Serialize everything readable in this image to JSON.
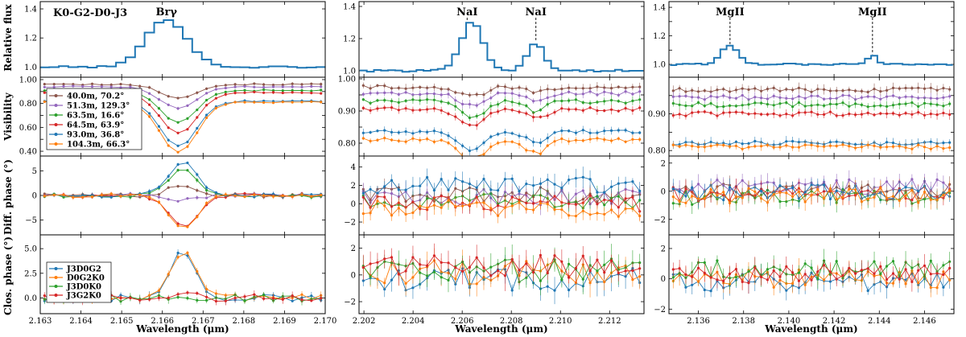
{
  "chart_data": {
    "type": "line",
    "title": "K0-G2-D0-J3",
    "xlabel": "Wavelength (μm)",
    "row_labels": [
      "Relative flux",
      "Visibility",
      "Diff. phase (°)",
      "Clos. phase (°)"
    ],
    "series_colors": {
      "baselines": [
        "#8c564b",
        "#9467bd",
        "#2ca02c",
        "#d62728",
        "#1f77b4",
        "#ff7f0e"
      ],
      "triangles": [
        "#1f77b4",
        "#ff7f0e",
        "#2ca02c",
        "#d62728"
      ],
      "flux": "#1f77b4"
    },
    "legend_baselines": [
      "40.0m, 70.2°",
      "51.3m, 129.3°",
      "63.5m, 16.6°",
      "64.5m, 63.9°",
      "93.0m, 36.8°",
      "104.3m, 66.3°"
    ],
    "legend_triangles": [
      "J3D0G2",
      "D0G2K0",
      "J3D0K0",
      "J3G2K0"
    ],
    "columns": [
      {
        "name": "Br-gamma",
        "xlim": [
          2.163,
          2.17
        ],
        "xticks": [
          "2.163",
          "2.164",
          "2.165",
          "2.166",
          "2.167",
          "2.168",
          "2.169",
          "2.170"
        ],
        "lines": [
          {
            "label": "Brγ",
            "x": 2.1661
          }
        ],
        "flux": {
          "ylim": [
            0.93,
            1.45
          ],
          "yticks": [
            1.0,
            1.2,
            1.4
          ],
          "ytick_labels": [
            "1.0",
            "1.2",
            "1.4"
          ],
          "center": 2.1661,
          "base": 1.0,
          "peaks": [
            [
              2.1661,
              0.33,
              0.0005
            ]
          ]
        },
        "vis": {
          "ylim": [
            0.36,
            1.02
          ],
          "yticks": [
            0.4,
            0.5,
            0.6,
            0.7,
            0.8,
            0.9,
            1.0
          ],
          "ytick_labels": [
            "0.40",
            "",
            "0.60",
            "",
            "0.80",
            "",
            "1.00"
          ],
          "bases": [
            0.96,
            0.94,
            0.91,
            0.89,
            0.82,
            0.81
          ],
          "dips": [
            0.11,
            0.18,
            0.27,
            0.34,
            0.38,
            0.42
          ],
          "center": 2.1664,
          "width": 0.00045
        },
        "dphi": {
          "ylim": [
            -8,
            8
          ],
          "yticks": [
            -5,
            0,
            5
          ],
          "ytick_labels": [
            "−5",
            "0",
            "5"
          ],
          "amps": [
            2.0,
            -1.0,
            5.5,
            -6.5,
            7.0,
            -6.8
          ],
          "center": 2.1665,
          "width": 0.00035,
          "noise": 0.4
        },
        "cphi": {
          "ylim": [
            -1.6,
            6.4
          ],
          "yticks": [
            0,
            2.5,
            5
          ],
          "ytick_labels": [
            "0.0",
            "2.5",
            "5.0"
          ],
          "amps": [
            5.0,
            4.8,
            0.2,
            0.3
          ],
          "center": 2.1665,
          "width": 0.0003,
          "noise": 0.35
        },
        "n": 30
      },
      {
        "name": "NaI",
        "xlim": [
          2.2018,
          2.2134
        ],
        "xticks": [
          "2.202",
          "2.204",
          "2.206",
          "2.208",
          "2.210",
          "2.212"
        ],
        "lines": [
          {
            "label": "NaI",
            "x": 2.2062
          },
          {
            "label": "NaI",
            "x": 2.209
          }
        ],
        "flux": {
          "ylim": [
            0.96,
            1.43
          ],
          "yticks": [
            1.0,
            1.2,
            1.4
          ],
          "ytick_labels": [
            "1.0",
            "1.2",
            "1.4"
          ],
          "center": 2.2062,
          "base": 1.0,
          "peaks": [
            [
              2.2064,
              0.3,
              0.00045
            ],
            [
              2.209,
              0.17,
              0.00035
            ]
          ]
        },
        "vis": {
          "ylim": [
            0.76,
            1.005
          ],
          "yticks": [
            0.8,
            0.85,
            0.9,
            0.95,
            1.0
          ],
          "ytick_labels": [
            "0.80",
            "",
            "0.90",
            "",
            "1.00"
          ],
          "bases": [
            0.975,
            0.955,
            0.93,
            0.905,
            0.835,
            0.81
          ],
          "dips": [
            0.03,
            0.04,
            0.05,
            0.05,
            0.06,
            0.07
          ],
          "center": 2.2064,
          "width": 0.0005,
          "dip2": 0.6,
          "center2": 2.209
        },
        "dphi": {
          "ylim": [
            -3.4,
            5.2
          ],
          "yticks": [
            -2,
            0,
            2,
            4
          ],
          "ytick_labels": [
            "−2",
            "0",
            "2",
            "4"
          ],
          "offsets": [
            1.0,
            0.7,
            0.4,
            0.0,
            2.0,
            -0.5
          ],
          "noise": 0.9
        },
        "cphi": {
          "ylim": [
            -2.9,
            3.0
          ],
          "yticks": [
            -2,
            0,
            2
          ],
          "ytick_labels": [
            "−2",
            "0",
            "2"
          ],
          "offsets": [
            -0.3,
            0.2,
            0.3,
            0.6
          ],
          "noise": 0.9
        },
        "n": 40
      },
      {
        "name": "MgII",
        "xlim": [
          2.1347,
          2.1473
        ],
        "xticks": [
          "2.136",
          "2.138",
          "2.140",
          "2.142",
          "2.144",
          "2.146"
        ],
        "lines": [
          {
            "label": "MgII",
            "x": 2.1374
          },
          {
            "label": "MgII",
            "x": 2.1437
          }
        ],
        "flux": {
          "ylim": [
            0.91,
            1.44
          ],
          "yticks": [
            1.0,
            1.1,
            1.2,
            1.3,
            1.4
          ],
          "ytick_labels": [
            "1.0",
            "",
            "1.2",
            "",
            "1.4"
          ],
          "center": 2.1374,
          "base": 1.0,
          "peaks": [
            [
              2.1374,
              0.13,
              0.0004
            ],
            [
              2.1437,
              0.06,
              0.0002
            ]
          ]
        },
        "vis": {
          "ylim": [
            0.785,
            1.0
          ],
          "yticks": [
            0.8,
            0.85,
            0.9,
            0.95
          ],
          "ytick_labels": [
            "0.80",
            "",
            "0.90",
            ""
          ],
          "bases": [
            0.965,
            0.945,
            0.925,
            0.9,
            0.82,
            0.81
          ],
          "dips": [
            0,
            0,
            0,
            0,
            0,
            0
          ],
          "center": 2.1374,
          "width": 0.0004
        },
        "dphi": {
          "ylim": [
            -3.1,
            2.5
          ],
          "yticks": [
            -2,
            0,
            2
          ],
          "ytick_labels": [
            "−2",
            "0",
            "2"
          ],
          "offsets": [
            0.0,
            0.3,
            -0.4,
            -0.2,
            -0.1,
            -0.3
          ],
          "noise": 0.55
        },
        "cphi": {
          "ylim": [
            -2.3,
            2.9
          ],
          "yticks": [
            -2,
            0,
            2
          ],
          "ytick_labels": [
            "−2",
            "0",
            "2"
          ],
          "offsets": [
            -0.2,
            0.0,
            0.6,
            0.3
          ],
          "noise": 0.6
        },
        "n": 45
      }
    ]
  }
}
